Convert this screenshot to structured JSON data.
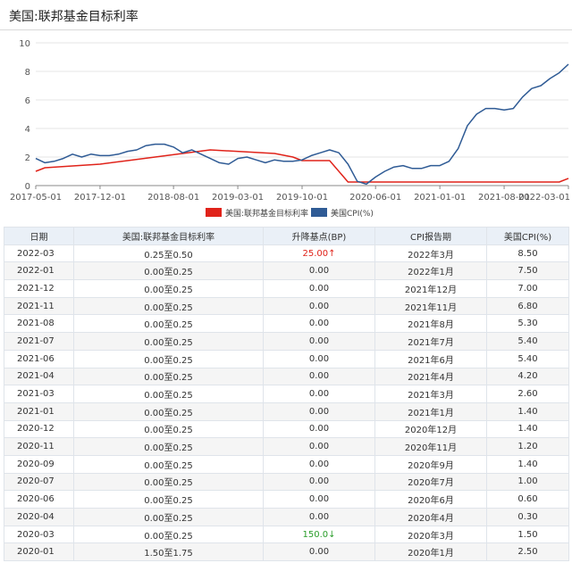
{
  "page_title": "美国:联邦基金目标利率",
  "colors": {
    "fed_rate": "#e0231a",
    "cpi": "#2f5b95",
    "up": "#e0231a",
    "down": "#2a9d2a"
  },
  "chart_data": {
    "type": "line",
    "x_ticks": [
      "2017-05-01",
      "2017-12-01",
      "2018-08-01",
      "2019-03-01",
      "2019-10-01",
      "2020-06-01",
      "2021-01-01",
      "2021-08-01",
      "2022-03-01"
    ],
    "y_ticks": [
      0,
      2,
      4,
      6,
      8,
      10
    ],
    "ylim": [
      0,
      10
    ],
    "xlim": [
      "2017-05",
      "2022-03"
    ],
    "grid": "horizontal",
    "legend_position": "bottom-center",
    "series": [
      {
        "name": "美国:联邦基金目标利率",
        "color": "#e0231a",
        "points": [
          [
            "2017-05",
            1.0
          ],
          [
            "2017-06",
            1.25
          ],
          [
            "2017-12",
            1.5
          ],
          [
            "2018-03",
            1.75
          ],
          [
            "2018-06",
            2.0
          ],
          [
            "2018-09",
            2.25
          ],
          [
            "2018-12",
            2.5
          ],
          [
            "2019-07",
            2.25
          ],
          [
            "2019-09",
            2.0
          ],
          [
            "2019-10",
            1.75
          ],
          [
            "2020-01",
            1.75
          ],
          [
            "2020-03",
            0.25
          ],
          [
            "2022-02",
            0.25
          ],
          [
            "2022-03",
            0.5
          ]
        ]
      },
      {
        "name": "美国CPI(%)",
        "color": "#2f5b95",
        "points": [
          [
            "2017-05",
            1.9
          ],
          [
            "2017-06",
            1.6
          ],
          [
            "2017-07",
            1.7
          ],
          [
            "2017-08",
            1.9
          ],
          [
            "2017-09",
            2.2
          ],
          [
            "2017-10",
            2.0
          ],
          [
            "2017-11",
            2.2
          ],
          [
            "2017-12",
            2.1
          ],
          [
            "2018-01",
            2.1
          ],
          [
            "2018-02",
            2.2
          ],
          [
            "2018-03",
            2.4
          ],
          [
            "2018-04",
            2.5
          ],
          [
            "2018-05",
            2.8
          ],
          [
            "2018-06",
            2.9
          ],
          [
            "2018-07",
            2.9
          ],
          [
            "2018-08",
            2.7
          ],
          [
            "2018-09",
            2.3
          ],
          [
            "2018-10",
            2.5
          ],
          [
            "2018-11",
            2.2
          ],
          [
            "2018-12",
            1.9
          ],
          [
            "2019-01",
            1.6
          ],
          [
            "2019-02",
            1.5
          ],
          [
            "2019-03",
            1.9
          ],
          [
            "2019-04",
            2.0
          ],
          [
            "2019-05",
            1.8
          ],
          [
            "2019-06",
            1.6
          ],
          [
            "2019-07",
            1.8
          ],
          [
            "2019-08",
            1.7
          ],
          [
            "2019-09",
            1.7
          ],
          [
            "2019-10",
            1.8
          ],
          [
            "2019-11",
            2.1
          ],
          [
            "2019-12",
            2.3
          ],
          [
            "2020-01",
            2.5
          ],
          [
            "2020-02",
            2.3
          ],
          [
            "2020-03",
            1.5
          ],
          [
            "2020-04",
            0.3
          ],
          [
            "2020-05",
            0.1
          ],
          [
            "2020-06",
            0.6
          ],
          [
            "2020-07",
            1.0
          ],
          [
            "2020-08",
            1.3
          ],
          [
            "2020-09",
            1.4
          ],
          [
            "2020-10",
            1.2
          ],
          [
            "2020-11",
            1.2
          ],
          [
            "2020-12",
            1.4
          ],
          [
            "2021-01",
            1.4
          ],
          [
            "2021-02",
            1.7
          ],
          [
            "2021-03",
            2.6
          ],
          [
            "2021-04",
            4.2
          ],
          [
            "2021-05",
            5.0
          ],
          [
            "2021-06",
            5.4
          ],
          [
            "2021-07",
            5.4
          ],
          [
            "2021-08",
            5.3
          ],
          [
            "2021-09",
            5.4
          ],
          [
            "2021-10",
            6.2
          ],
          [
            "2021-11",
            6.8
          ],
          [
            "2021-12",
            7.0
          ],
          [
            "2022-01",
            7.5
          ],
          [
            "2022-02",
            7.9
          ],
          [
            "2022-03",
            8.5
          ]
        ]
      }
    ]
  },
  "legend": [
    "美国:联邦基金目标利率",
    "美国CPI(%)"
  ],
  "table": {
    "headers": [
      "日期",
      "美国:联邦基金目标利率",
      "升降基点(BP)",
      "CPI报告期",
      "美国CPI(%)"
    ],
    "rows": [
      {
        "date": "2022-03",
        "rate": "0.25至0.50",
        "bp": "25.00↑",
        "bp_dir": "up",
        "period": "2022年3月",
        "cpi": "8.50"
      },
      {
        "date": "2022-01",
        "rate": "0.00至0.25",
        "bp": "0.00",
        "bp_dir": "",
        "period": "2022年1月",
        "cpi": "7.50"
      },
      {
        "date": "2021-12",
        "rate": "0.00至0.25",
        "bp": "0.00",
        "bp_dir": "",
        "period": "2021年12月",
        "cpi": "7.00"
      },
      {
        "date": "2021-11",
        "rate": "0.00至0.25",
        "bp": "0.00",
        "bp_dir": "",
        "period": "2021年11月",
        "cpi": "6.80"
      },
      {
        "date": "2021-08",
        "rate": "0.00至0.25",
        "bp": "0.00",
        "bp_dir": "",
        "period": "2021年8月",
        "cpi": "5.30"
      },
      {
        "date": "2021-07",
        "rate": "0.00至0.25",
        "bp": "0.00",
        "bp_dir": "",
        "period": "2021年7月",
        "cpi": "5.40"
      },
      {
        "date": "2021-06",
        "rate": "0.00至0.25",
        "bp": "0.00",
        "bp_dir": "",
        "period": "2021年6月",
        "cpi": "5.40"
      },
      {
        "date": "2021-04",
        "rate": "0.00至0.25",
        "bp": "0.00",
        "bp_dir": "",
        "period": "2021年4月",
        "cpi": "4.20"
      },
      {
        "date": "2021-03",
        "rate": "0.00至0.25",
        "bp": "0.00",
        "bp_dir": "",
        "period": "2021年3月",
        "cpi": "2.60"
      },
      {
        "date": "2021-01",
        "rate": "0.00至0.25",
        "bp": "0.00",
        "bp_dir": "",
        "period": "2021年1月",
        "cpi": "1.40"
      },
      {
        "date": "2020-12",
        "rate": "0.00至0.25",
        "bp": "0.00",
        "bp_dir": "",
        "period": "2020年12月",
        "cpi": "1.40"
      },
      {
        "date": "2020-11",
        "rate": "0.00至0.25",
        "bp": "0.00",
        "bp_dir": "",
        "period": "2020年11月",
        "cpi": "1.20"
      },
      {
        "date": "2020-09",
        "rate": "0.00至0.25",
        "bp": "0.00",
        "bp_dir": "",
        "period": "2020年9月",
        "cpi": "1.40"
      },
      {
        "date": "2020-07",
        "rate": "0.00至0.25",
        "bp": "0.00",
        "bp_dir": "",
        "period": "2020年7月",
        "cpi": "1.00"
      },
      {
        "date": "2020-06",
        "rate": "0.00至0.25",
        "bp": "0.00",
        "bp_dir": "",
        "period": "2020年6月",
        "cpi": "0.60"
      },
      {
        "date": "2020-04",
        "rate": "0.00至0.25",
        "bp": "0.00",
        "bp_dir": "",
        "period": "2020年4月",
        "cpi": "0.30"
      },
      {
        "date": "2020-03",
        "rate": "0.00至0.25",
        "bp": "150.0↓",
        "bp_dir": "down",
        "period": "2020年3月",
        "cpi": "1.50"
      },
      {
        "date": "2020-01",
        "rate": "1.50至1.75",
        "bp": "0.00",
        "bp_dir": "",
        "period": "2020年1月",
        "cpi": "2.50"
      }
    ]
  }
}
